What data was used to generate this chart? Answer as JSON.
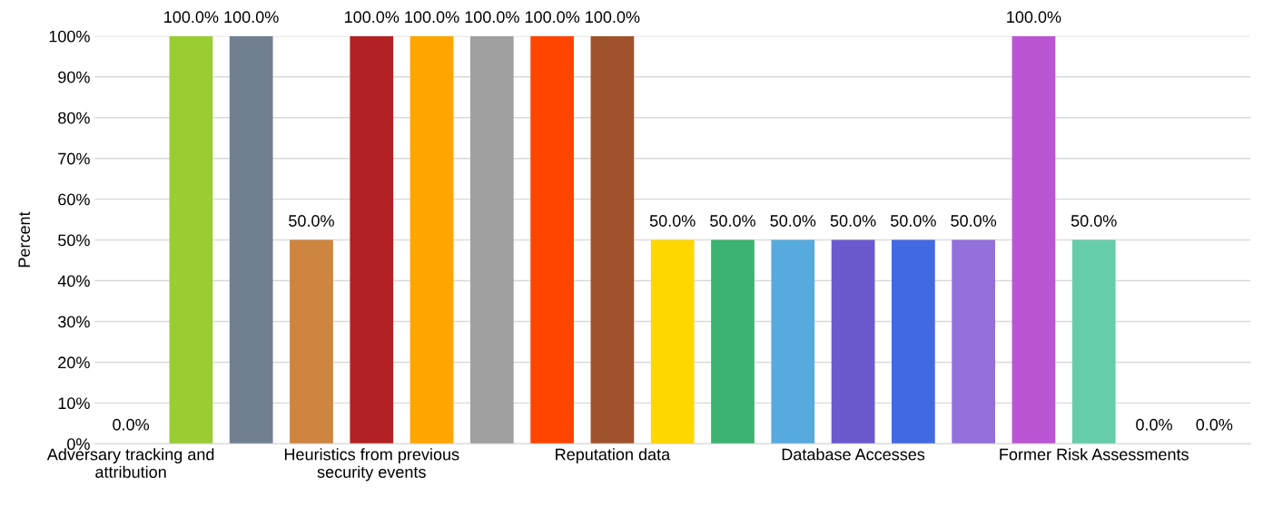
{
  "chart_data": {
    "type": "bar",
    "ylabel": "Percent",
    "categories": [
      "Adversary tracking and attribution",
      null,
      null,
      null,
      "Heuristics from previous security events",
      null,
      null,
      null,
      "Reputation data",
      null,
      null,
      null,
      "Database Accesses",
      null,
      null,
      null,
      "Former Risk Assessments",
      null,
      null
    ],
    "values": [
      0,
      100,
      100,
      50,
      100,
      100,
      100,
      100,
      100,
      50,
      50,
      50,
      50,
      50,
      50,
      100,
      50,
      0,
      0
    ],
    "colors": [
      "#808080",
      "#9acd32",
      "#708090",
      "#cd853f",
      "#b22222",
      "#ffa500",
      "#a0a0a0",
      "#ff4500",
      "#a0522d",
      "#ffd700",
      "#3cb371",
      "#56aadd",
      "#6a5acd",
      "#4169e1",
      "#9370db",
      "#ba55d3",
      "#66cdaa",
      "#808080",
      "#808080"
    ],
    "value_labels": [
      "0.0%",
      "100.0%",
      "100.0%",
      "50.0%",
      "100.0%",
      "100.0%",
      "100.0%",
      "100.0%",
      "100.0%",
      "50.0%",
      "50.0%",
      "50.0%",
      "50.0%",
      "50.0%",
      "50.0%",
      "100.0%",
      "50.0%",
      "0.0%",
      "0.0%"
    ],
    "ylim": [
      0,
      100
    ],
    "yticks": [
      {
        "value": 0,
        "label": "0%"
      },
      {
        "value": 10,
        "label": "10%"
      },
      {
        "value": 20,
        "label": "20%"
      },
      {
        "value": 30,
        "label": "30%"
      },
      {
        "value": 40,
        "label": "40%"
      },
      {
        "value": 50,
        "label": "50%"
      },
      {
        "value": 60,
        "label": "60%"
      },
      {
        "value": 70,
        "label": "70%"
      },
      {
        "value": 80,
        "label": "80%"
      },
      {
        "value": 90,
        "label": "90%"
      },
      {
        "value": 100,
        "label": "100%"
      }
    ],
    "grid": "y",
    "legend": false
  }
}
